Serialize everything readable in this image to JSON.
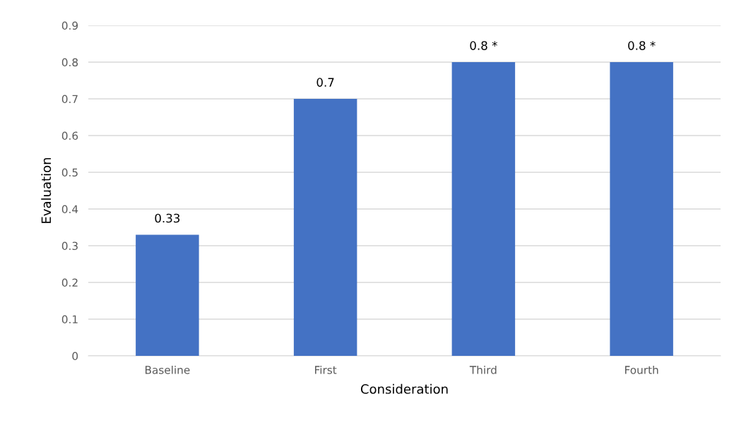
{
  "chart_data": {
    "type": "bar",
    "xlabel": "Consideration",
    "ylabel": "Evaluation",
    "categories": [
      "Baseline",
      "First",
      "Third",
      "Fourth"
    ],
    "values": [
      0.33,
      0.7,
      0.8,
      0.8
    ],
    "value_labels": [
      "0.33",
      "0.7",
      "0.8 *",
      "0.8 *"
    ],
    "color": "#4472c4",
    "ylim": [
      0,
      0.9
    ],
    "yticks": [
      0,
      0.1,
      0.2,
      0.3,
      0.4,
      0.5,
      0.6,
      0.7,
      0.8,
      0.9
    ],
    "grid": "y",
    "legend": false
  }
}
